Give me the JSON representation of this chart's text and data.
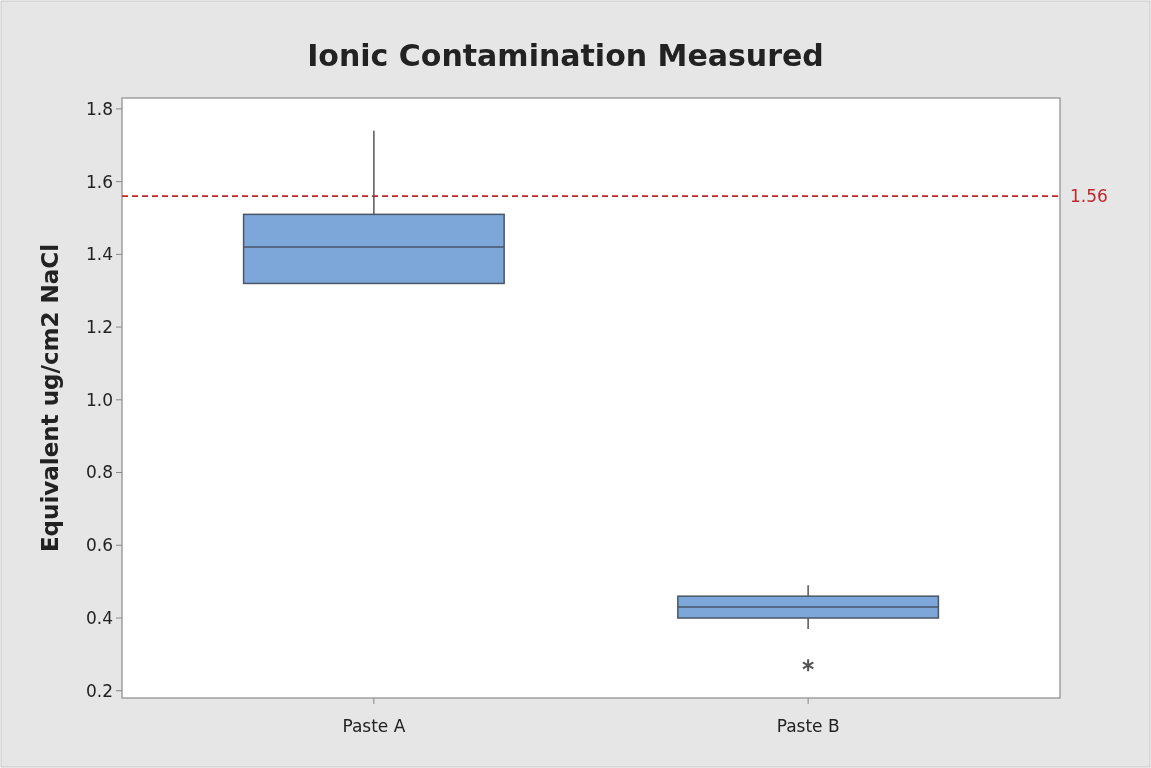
{
  "chart_data": {
    "type": "box",
    "title": "Ionic Contamination Measured",
    "ylabel": "Equivalent ug/cm2 NaCl",
    "categories": [
      "Paste A",
      "Paste B"
    ],
    "boxes": [
      {
        "low": 1.32,
        "q1": 1.32,
        "median": 1.42,
        "q3": 1.51,
        "high": 1.74
      },
      {
        "low": 0.37,
        "q1": 0.4,
        "median": 0.43,
        "q3": 0.46,
        "high": 0.49,
        "outliers": [
          0.27
        ]
      }
    ],
    "color": "#7da7d9",
    "ylim": [
      0.18,
      1.83
    ],
    "yticks": [
      {
        "value": 0.2,
        "label": "0.2"
      },
      {
        "value": 0.4,
        "label": "0.4"
      },
      {
        "value": 0.6,
        "label": "0.6"
      },
      {
        "value": 0.8,
        "label": "0.8"
      },
      {
        "value": 1,
        "label": "1.0"
      },
      {
        "value": 1.2,
        "label": "1.2"
      },
      {
        "value": 1.4,
        "label": "1.4"
      },
      {
        "value": 1.6,
        "label": "1.6"
      },
      {
        "value": 1.8,
        "label": "1.8"
      }
    ],
    "ref_lines": [
      {
        "axis": "y",
        "value": 1.56,
        "label": "1.56",
        "color": "#c0272d",
        "line_style": "dashed"
      }
    ],
    "grid": false,
    "marker": "star"
  }
}
